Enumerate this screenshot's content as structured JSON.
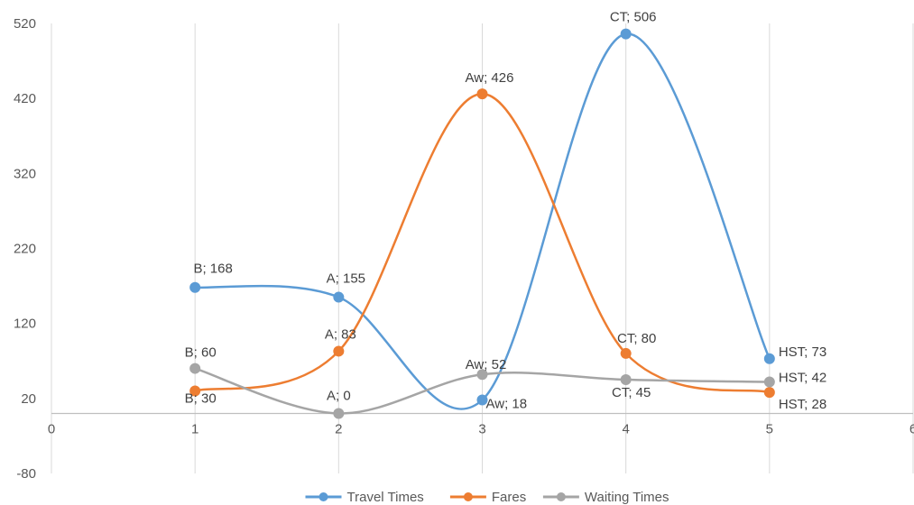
{
  "chart_data": {
    "type": "line",
    "smooth": true,
    "title": "",
    "xlabel": "",
    "ylabel": "",
    "xlim": [
      0,
      6
    ],
    "ylim": [
      -80,
      520
    ],
    "x_ticks": [
      0,
      1,
      2,
      3,
      4,
      5,
      6
    ],
    "y_ticks": [
      -80,
      20,
      120,
      220,
      320,
      420,
      520
    ],
    "grid": {
      "vertical": true,
      "horizontal": false
    },
    "legend": "bottom",
    "series": [
      {
        "name": "Travel Times",
        "color": "#5B9BD5",
        "points": [
          {
            "x": 1,
            "y": 168,
            "label": "B; 168"
          },
          {
            "x": 2,
            "y": 155,
            "label": "A; 155"
          },
          {
            "x": 3,
            "y": 18,
            "label": "Aw; 18"
          },
          {
            "x": 4,
            "y": 506,
            "label": "CT; 506"
          },
          {
            "x": 5,
            "y": 73,
            "label": "HST; 73"
          }
        ]
      },
      {
        "name": "Fares",
        "color": "#ED7D31",
        "points": [
          {
            "x": 1,
            "y": 30,
            "label": "B; 30"
          },
          {
            "x": 2,
            "y": 83,
            "label": "A; 83"
          },
          {
            "x": 3,
            "y": 426,
            "label": "Aw; 426"
          },
          {
            "x": 4,
            "y": 80,
            "label": "CT; 80"
          },
          {
            "x": 5,
            "y": 28,
            "label": "HST; 28"
          }
        ]
      },
      {
        "name": "Waiting Times",
        "color": "#A5A5A5",
        "points": [
          {
            "x": 1,
            "y": 60,
            "label": "B; 60"
          },
          {
            "x": 2,
            "y": 0,
            "label": "A; 0"
          },
          {
            "x": 3,
            "y": 52,
            "label": "Aw; 52"
          },
          {
            "x": 4,
            "y": 45,
            "label": "CT; 45"
          },
          {
            "x": 5,
            "y": 42,
            "label": "HST; 42"
          }
        ]
      }
    ]
  }
}
